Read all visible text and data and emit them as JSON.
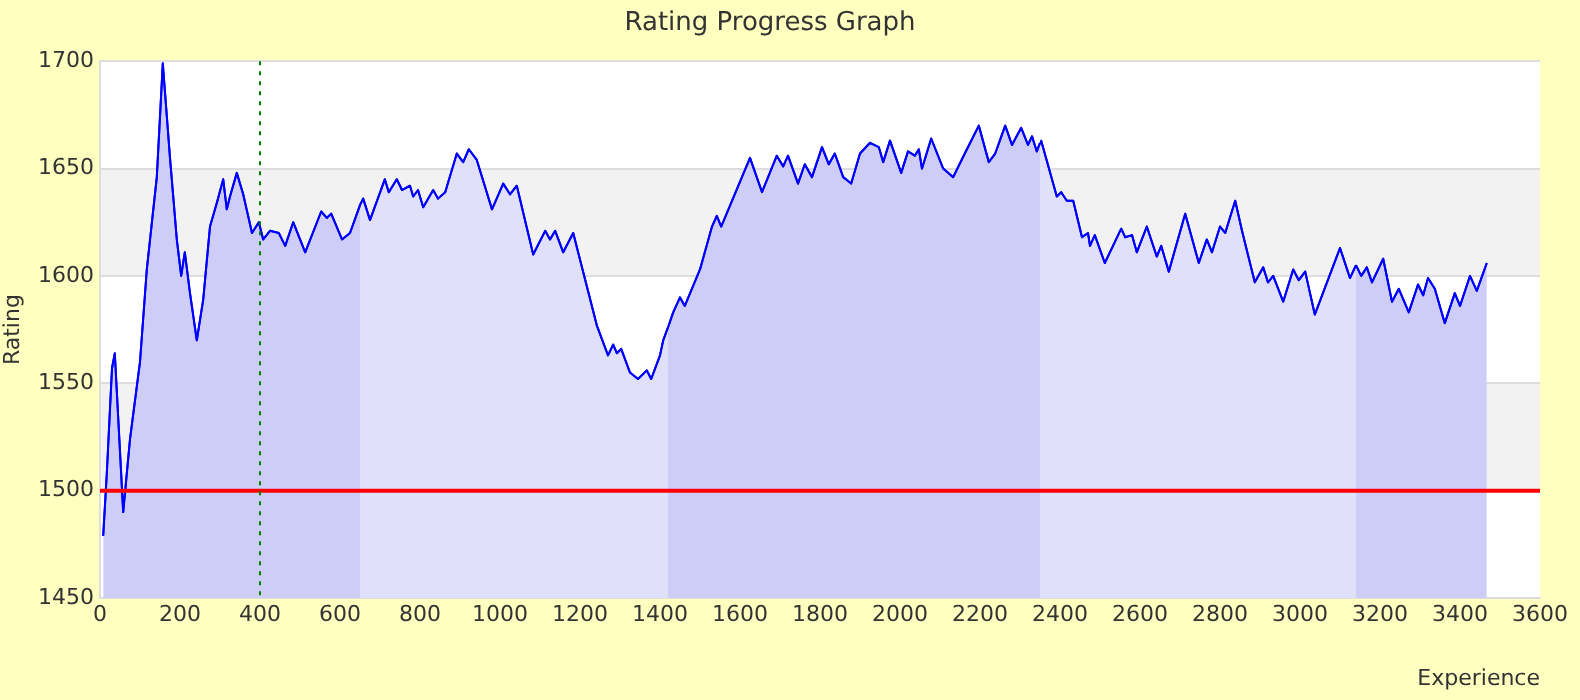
{
  "chart_data": {
    "type": "area",
    "title": "Rating Progress Graph",
    "xlabel": "Experience",
    "ylabel": "Rating",
    "xlim": [
      0,
      3600
    ],
    "xticks": [
      0,
      200,
      400,
      600,
      800,
      1000,
      1200,
      1400,
      1600,
      1800,
      2000,
      2200,
      2400,
      2600,
      2800,
      3000,
      3200,
      3400,
      3600
    ],
    "ylim": [
      1450,
      1700
    ],
    "yticks": [
      1450,
      1500,
      1550,
      1600,
      1650,
      1700
    ],
    "grid": "y",
    "legend": false,
    "series": [
      {
        "color": "#cdcdf8",
        "x": [
          8,
          17,
          30,
          37,
          58,
          75,
          100,
          117,
          142,
          157,
          175,
          192,
          203,
          212,
          225,
          242,
          258,
          275,
          292,
          308,
          317,
          325,
          342,
          358,
          380,
          397,
          408,
          425,
          447,
          463,
          483,
          513,
          553,
          567,
          578,
          605,
          625,
          650
        ],
        "values": [
          1479,
          1508,
          1557,
          1564,
          1490,
          1524,
          1560,
          1603,
          1646,
          1699,
          1655,
          1617,
          1600,
          1611,
          1592,
          1570,
          1589,
          1623,
          1634,
          1645,
          1631,
          1637,
          1648,
          1638,
          1620,
          1625,
          1617,
          1621,
          1620,
          1614,
          1625,
          1611,
          1630,
          1627,
          1629,
          1617,
          1620,
          1633
        ]
      },
      {
        "color": "#e0e0fa",
        "x": [
          650,
          658,
          675,
          712,
          722,
          742,
          755,
          775,
          783,
          795,
          808,
          833,
          845,
          863,
          892,
          908,
          922,
          942,
          980,
          1008,
          1025,
          1042,
          1083,
          1113,
          1125,
          1138,
          1158,
          1183,
          1242,
          1270,
          1283,
          1292,
          1303,
          1325,
          1345,
          1367,
          1378,
          1400,
          1408,
          1420
        ],
        "values": [
          1633,
          1636,
          1626,
          1645,
          1639,
          1645,
          1640,
          1642,
          1637,
          1640,
          1632,
          1640,
          1636,
          1639,
          1657,
          1653,
          1659,
          1654,
          1631,
          1643,
          1638,
          1642,
          1610,
          1621,
          1617,
          1621,
          1611,
          1620,
          1577,
          1563,
          1568,
          1564,
          1566,
          1555,
          1552,
          1556,
          1552,
          1563,
          1570,
          1576
        ]
      },
      {
        "color": "#cdcdf8",
        "x": [
          1420,
          1433,
          1450,
          1462,
          1500,
          1530,
          1542,
          1553,
          1625,
          1655,
          1692,
          1708,
          1720,
          1745,
          1762,
          1780,
          1805,
          1822,
          1837,
          1858,
          1878,
          1900,
          1925,
          1947,
          1958,
          1975,
          2003,
          2020,
          2037,
          2047,
          2055,
          2078,
          2108,
          2133,
          2162,
          2197,
          2222,
          2238,
          2263,
          2280,
          2303,
          2320,
          2330,
          2342,
          2350
        ],
        "values": [
          1576,
          1583,
          1590,
          1586,
          1603,
          1623,
          1628,
          1623,
          1655,
          1639,
          1656,
          1651,
          1656,
          1643,
          1652,
          1646,
          1660,
          1652,
          1657,
          1646,
          1643,
          1657,
          1662,
          1660,
          1653,
          1663,
          1648,
          1658,
          1656,
          1659,
          1650,
          1664,
          1650,
          1646,
          1657,
          1670,
          1653,
          1657,
          1670,
          1661,
          1669,
          1661,
          1665,
          1658,
          1662
        ]
      },
      {
        "color": "#e0e0fa",
        "x": [
          2350,
          2353,
          2392,
          2403,
          2417,
          2433,
          2455,
          2470,
          2475,
          2487,
          2512,
          2553,
          2563,
          2580,
          2592,
          2617,
          2642,
          2653,
          2672,
          2713,
          2747,
          2767,
          2780,
          2800,
          2813,
          2838,
          2855,
          2887,
          2908,
          2920,
          2933,
          2958,
          2983,
          2997,
          3013,
          3037,
          3100,
          3125,
          3140
        ],
        "values": [
          1662,
          1663,
          1637,
          1639,
          1635,
          1635,
          1618,
          1620,
          1614,
          1619,
          1606,
          1622,
          1618,
          1619,
          1611,
          1623,
          1609,
          1614,
          1602,
          1629,
          1606,
          1617,
          1611,
          1623,
          1620,
          1635,
          1621,
          1597,
          1604,
          1597,
          1600,
          1588,
          1603,
          1598,
          1602,
          1582,
          1613,
          1599,
          1605
        ]
      },
      {
        "color": "#cdcdf8",
        "x": [
          3140,
          3153,
          3167,
          3180,
          3208,
          3230,
          3247,
          3272,
          3295,
          3308,
          3320,
          3337,
          3362,
          3387,
          3400,
          3425,
          3442,
          3467
        ],
        "values": [
          1605,
          1600,
          1604,
          1597,
          1608,
          1588,
          1594,
          1583,
          1596,
          1591,
          1599,
          1594,
          1578,
          1592,
          1586,
          1600,
          1593,
          1606
        ]
      }
    ],
    "ref_lines": [
      {
        "axis": "y",
        "value": 1500,
        "color": "#ff0000",
        "line_style": "solid"
      },
      {
        "axis": "x",
        "value": 400,
        "color": "#008000",
        "line_style": "dotted"
      }
    ]
  }
}
